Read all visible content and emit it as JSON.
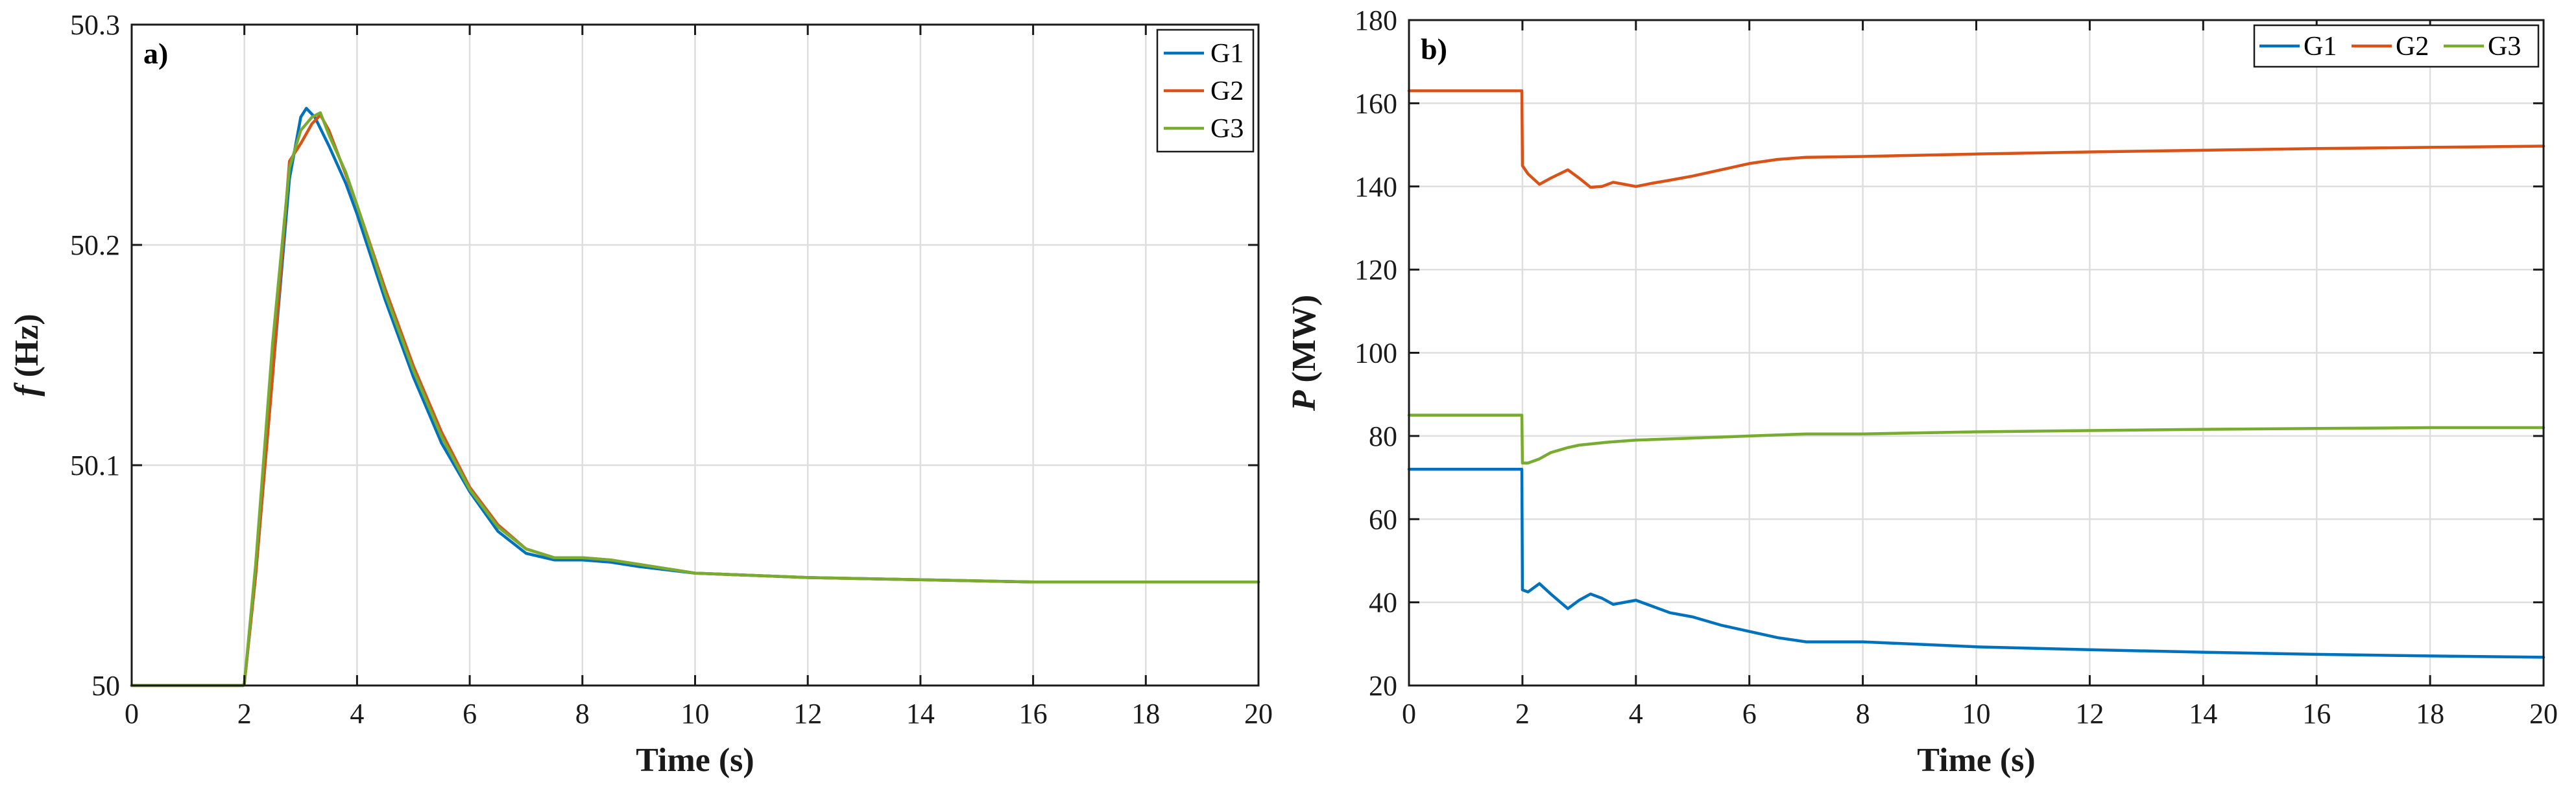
{
  "chart_data": [
    {
      "type": "line",
      "panel_label": "a)",
      "title": "",
      "xlabel": "Time (s)",
      "ylabel_symbol": "f",
      "ylabel_unit": "(Hz)",
      "xlim": [
        0,
        20
      ],
      "ylim": [
        50,
        50.3
      ],
      "xticks": [
        0,
        2,
        4,
        6,
        8,
        10,
        12,
        14,
        16,
        18,
        20
      ],
      "xtick_labels": [
        "0",
        "2",
        "4",
        "6",
        "8",
        "10",
        "12",
        "14",
        "16",
        "18",
        "20"
      ],
      "yticks": [
        50,
        50.1,
        50.2,
        50.3
      ],
      "ytick_labels": [
        "50",
        "50.1",
        "50.2",
        "50.3"
      ],
      "grid": true,
      "legend": "top-right",
      "legend_layout": "vertical",
      "series": [
        {
          "name": "G1",
          "color": "#0072BD",
          "x": [
            0,
            1.98,
            2.0,
            2.2,
            2.5,
            2.8,
            3.0,
            3.1,
            3.25,
            3.5,
            3.8,
            4.0,
            4.5,
            5.0,
            5.5,
            6.0,
            6.5,
            7.0,
            7.5,
            8.0,
            8.5,
            9.0,
            10.0,
            12.0,
            14.0,
            16.0,
            20.0
          ],
          "y": [
            50,
            50,
            50.001,
            50.05,
            50.14,
            50.23,
            50.258,
            50.262,
            50.258,
            50.245,
            50.228,
            50.214,
            50.175,
            50.14,
            50.11,
            50.088,
            50.07,
            50.06,
            50.057,
            50.057,
            50.056,
            50.054,
            50.051,
            50.049,
            50.048,
            50.047,
            50.047
          ]
        },
        {
          "name": "G2",
          "color": "#D95319",
          "x": [
            0,
            1.98,
            2.0,
            2.2,
            2.5,
            2.8,
            3.0,
            3.2,
            3.35,
            3.5,
            3.8,
            4.0,
            4.5,
            5.0,
            5.5,
            6.0,
            6.5,
            7.0,
            7.5,
            8.0,
            8.5,
            9.0,
            10.0,
            12.0,
            14.0,
            16.0,
            20.0
          ],
          "y": [
            50,
            50,
            50.001,
            50.05,
            50.14,
            50.238,
            50.246,
            50.255,
            50.259,
            50.252,
            50.232,
            50.218,
            50.18,
            50.145,
            50.115,
            50.09,
            50.073,
            50.062,
            50.058,
            50.058,
            50.057,
            50.055,
            50.051,
            50.049,
            50.048,
            50.047,
            50.047
          ]
        },
        {
          "name": "G3",
          "color": "#77AC30",
          "x": [
            0,
            1.98,
            2.0,
            2.2,
            2.5,
            2.8,
            3.0,
            3.2,
            3.35,
            3.5,
            3.8,
            4.0,
            4.5,
            5.0,
            5.5,
            6.0,
            6.5,
            7.0,
            7.5,
            8.0,
            8.5,
            9.0,
            10.0,
            12.0,
            14.0,
            16.0,
            20.0
          ],
          "y": [
            50,
            50,
            50.001,
            50.055,
            50.155,
            50.235,
            50.252,
            50.258,
            50.26,
            50.25,
            50.233,
            50.218,
            50.178,
            50.143,
            50.113,
            50.089,
            50.072,
            50.062,
            50.058,
            50.058,
            50.057,
            50.055,
            50.051,
            50.049,
            50.048,
            50.047,
            50.047
          ]
        }
      ]
    },
    {
      "type": "line",
      "panel_label": "b)",
      "title": "",
      "xlabel": "Time (s)",
      "ylabel_symbol": "P",
      "ylabel_unit": "(MW)",
      "xlim": [
        0,
        20
      ],
      "ylim": [
        20,
        180
      ],
      "xticks": [
        0,
        2,
        4,
        6,
        8,
        10,
        12,
        14,
        16,
        18,
        20
      ],
      "xtick_labels": [
        "0",
        "2",
        "4",
        "6",
        "8",
        "10",
        "12",
        "14",
        "16",
        "18",
        "20"
      ],
      "yticks": [
        20,
        40,
        60,
        80,
        100,
        120,
        140,
        160,
        180
      ],
      "ytick_labels": [
        "20",
        "40",
        "60",
        "80",
        "100",
        "120",
        "140",
        "160",
        "180"
      ],
      "grid": true,
      "legend": "top-right",
      "legend_layout": "horizontal",
      "series": [
        {
          "name": "G1",
          "color": "#0072BD",
          "x": [
            0,
            1.99,
            2.0,
            2.1,
            2.3,
            2.5,
            2.8,
            3.0,
            3.2,
            3.4,
            3.6,
            3.8,
            4.0,
            4.3,
            4.6,
            5.0,
            5.5,
            6.0,
            6.5,
            7.0,
            7.5,
            8.0,
            10.0,
            12.0,
            14.0,
            16.0,
            18.0,
            20.0
          ],
          "y": [
            72,
            72,
            43,
            42.5,
            44.5,
            42,
            38.5,
            40.5,
            42,
            41,
            39.5,
            40,
            40.5,
            39,
            37.5,
            36.5,
            34.5,
            33,
            31.5,
            30.5,
            30.5,
            30.5,
            29.3,
            28.6,
            28,
            27.5,
            27.1,
            26.8
          ]
        },
        {
          "name": "G2",
          "color": "#D95319",
          "x": [
            0,
            1.99,
            2.0,
            2.1,
            2.3,
            2.5,
            2.8,
            3.0,
            3.2,
            3.4,
            3.6,
            3.8,
            4.0,
            4.3,
            4.6,
            5.0,
            5.5,
            6.0,
            6.5,
            7.0,
            8.0,
            10.0,
            12.0,
            14.0,
            16.0,
            18.0,
            20.0
          ],
          "y": [
            163,
            163,
            145,
            143,
            140.5,
            142,
            144,
            142,
            139.8,
            140,
            141,
            140.5,
            140,
            140.8,
            141.5,
            142.5,
            144,
            145.5,
            146.5,
            147,
            147.2,
            147.8,
            148.3,
            148.7,
            149.1,
            149.4,
            149.7
          ]
        },
        {
          "name": "G3",
          "color": "#77AC30",
          "x": [
            0,
            1.99,
            2.0,
            2.1,
            2.3,
            2.5,
            2.8,
            3.0,
            3.5,
            4.0,
            5.0,
            6.0,
            7.0,
            8.0,
            10.0,
            12.0,
            14.0,
            16.0,
            18.0,
            20.0
          ],
          "y": [
            85,
            85,
            73.5,
            73.5,
            74.5,
            76,
            77.2,
            77.8,
            78.5,
            79,
            79.5,
            80,
            80.5,
            80.5,
            81,
            81.3,
            81.6,
            81.8,
            82,
            82
          ]
        }
      ]
    }
  ]
}
